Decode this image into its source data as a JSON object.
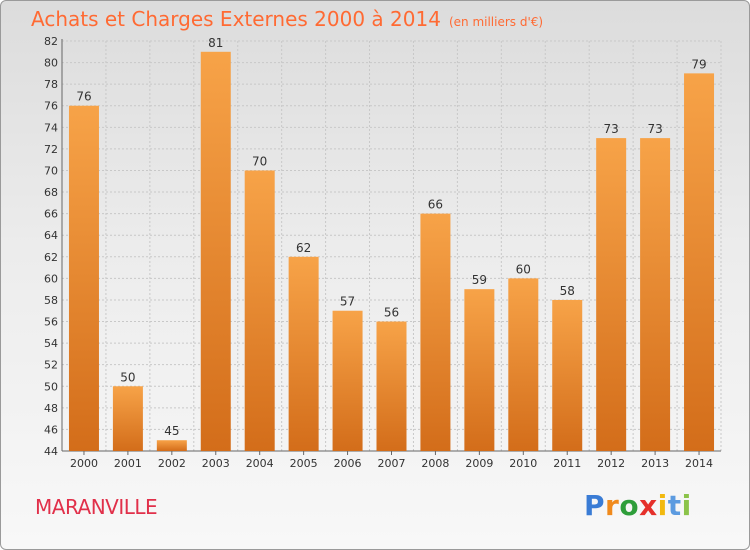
{
  "header": {
    "title": "Achats et Charges Externes 2000 à 2014",
    "subtitle": "(en milliers d'€)"
  },
  "footer": {
    "commune": "MARANVILLE",
    "logo": [
      "P",
      "r",
      "o",
      "x",
      "i",
      "t",
      "i"
    ]
  },
  "colors": {
    "bar_light": "#f7a348",
    "bar_dark": "#d36d1a",
    "title": "#ff6a33",
    "commune": "#e1304a",
    "logo": [
      "#3a7cd5",
      "#f08a1c",
      "#2e9e3a",
      "#e5302a",
      "#f2b90f",
      "#5c9be0",
      "#8bc34a"
    ]
  },
  "chart_data": {
    "type": "bar",
    "categories": [
      "2000",
      "2001",
      "2002",
      "2003",
      "2004",
      "2005",
      "2006",
      "2007",
      "2008",
      "2009",
      "2010",
      "2011",
      "2012",
      "2013",
      "2014"
    ],
    "values": [
      76,
      50,
      45,
      81,
      70,
      62,
      57,
      56,
      66,
      59,
      60,
      58,
      73,
      73,
      79
    ],
    "ylim": [
      44,
      82
    ],
    "yticks": [
      44,
      46,
      48,
      50,
      52,
      54,
      56,
      58,
      60,
      62,
      64,
      66,
      68,
      70,
      72,
      74,
      76,
      78,
      80,
      82
    ],
    "grid": true,
    "title": "Achats et Charges Externes 2000 à 2014",
    "subtitle": "(en milliers d'€)"
  }
}
